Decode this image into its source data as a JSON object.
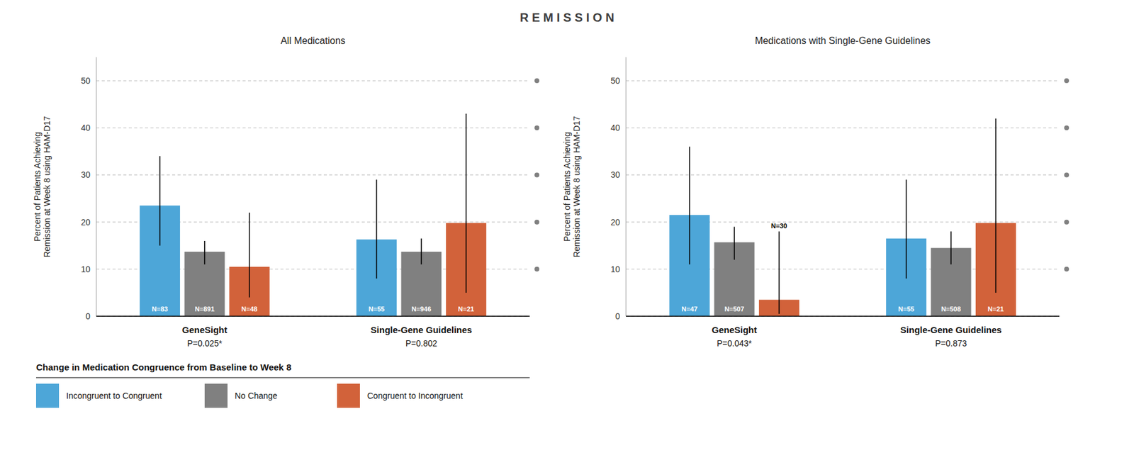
{
  "title": "R E M I S S I O N",
  "legend_title": "Change in Medication Congruence from Baseline to Week 8",
  "legend": "bottom",
  "chart_data": [
    {
      "type": "bar",
      "title": "All Medications",
      "ylabel": "Percent of Patients Achieving\nRemission at Week 8 using HAM-D17",
      "categories": [
        "GeneSight",
        "Single-Gene Guidelines"
      ],
      "pvalues": [
        "P=0.025*",
        "P=0.802"
      ],
      "series": [
        {
          "name": "Incongruent to Congruent",
          "color": "#4DA6D8",
          "values": [
            23.5,
            16.3
          ],
          "ci_low": [
            15.0,
            8.0
          ],
          "ci_high": [
            34.0,
            29.0
          ],
          "n_labels": [
            "N=83",
            "N=55"
          ]
        },
        {
          "name": "No Change",
          "color": "#808080",
          "values": [
            13.7,
            13.7
          ],
          "ci_low": [
            11.0,
            11.0
          ],
          "ci_high": [
            16.0,
            16.5
          ],
          "n_labels": [
            "N=891",
            "N=946"
          ]
        },
        {
          "name": "Congruent to Incongruent",
          "color": "#D2623A",
          "values": [
            10.5,
            19.8
          ],
          "ci_low": [
            4.0,
            5.0
          ],
          "ci_high": [
            22.0,
            43.0
          ],
          "n_labels": [
            "N=48",
            "N=21"
          ]
        }
      ],
      "ylim": [
        0,
        55
      ],
      "yticks": [
        0,
        10,
        20,
        30,
        40,
        50
      ],
      "grid": true,
      "dots": {
        "values": [
          10,
          20,
          30,
          40,
          50
        ],
        "color": "#808080"
      }
    },
    {
      "type": "bar",
      "title": "Medications with Single-Gene Guidelines",
      "ylabel": "Percent of Patients Achieving\nRemission at Week 8 using HAM-D17",
      "categories": [
        "GeneSight",
        "Single-Gene Guidelines"
      ],
      "pvalues": [
        "P=0.043*",
        "P=0.873"
      ],
      "series": [
        {
          "color": "#4DA6D8",
          "values": [
            21.5,
            16.5
          ],
          "ci_low": [
            11.0,
            8.0
          ],
          "ci_high": [
            36.0,
            29.0
          ],
          "n_labels": [
            "N=47",
            "N=55"
          ]
        },
        {
          "color": "#808080",
          "values": [
            15.7,
            14.5
          ],
          "ci_low": [
            12.0,
            11.0
          ],
          "ci_high": [
            19.0,
            18.0
          ],
          "n_labels": [
            "N=507",
            "N=508"
          ]
        },
        {
          "color": "#D2623A",
          "values": [
            3.5,
            19.8
          ],
          "ci_low": [
            0.5,
            5.0
          ],
          "ci_high": [
            18.0,
            42.0
          ],
          "n_labels": [
            "N=30",
            "N=21"
          ]
        }
      ],
      "ylim": [
        0,
        55
      ],
      "yticks": [
        0,
        10,
        20,
        30,
        40,
        50
      ],
      "grid": true,
      "dots": {
        "values": [
          10,
          20,
          30,
          40,
          50
        ],
        "color": "#808080"
      }
    }
  ]
}
